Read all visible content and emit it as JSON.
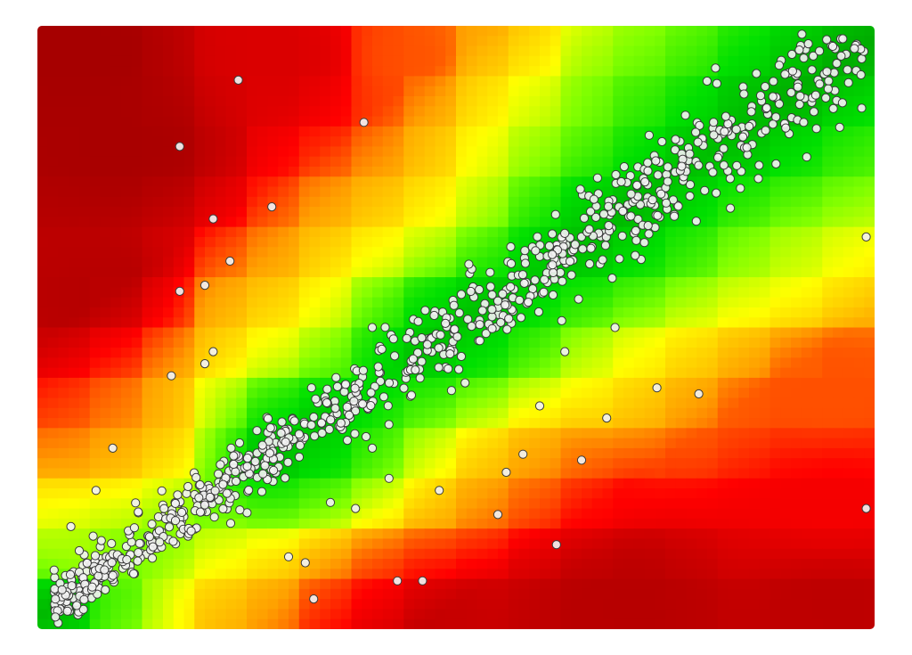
{
  "chart_data": {
    "type": "scatter",
    "title": "",
    "xlabel": "",
    "ylabel": "",
    "xlim": [
      0,
      1
    ],
    "ylim": [
      0,
      1
    ],
    "grid": false,
    "legend": "none",
    "heatmap_background": {
      "description_colorscale": [
        "#00a000",
        "#00e000",
        "#80ff00",
        "#ffff00",
        "#ffa000",
        "#ff0000",
        "#a00000"
      ],
      "min_color": "#00a000",
      "max_color": "#a00000",
      "cells_x": 12,
      "cells_y": 12,
      "anchor_points": [
        {
          "x": 0.05,
          "y": 0.95,
          "v": 0.98
        },
        {
          "x": 0.1,
          "y": 0.8,
          "v": 0.97
        },
        {
          "x": 0.1,
          "y": 0.55,
          "v": 0.93
        },
        {
          "x": 0.12,
          "y": 0.3,
          "v": 0.88
        },
        {
          "x": 0.07,
          "y": 0.1,
          "v": 0.7
        },
        {
          "x": 0.04,
          "y": 0.04,
          "v": 0.05
        },
        {
          "x": 0.1,
          "y": 0.04,
          "v": 0.4
        },
        {
          "x": 0.2,
          "y": 0.05,
          "v": 0.8
        },
        {
          "x": 0.4,
          "y": 0.03,
          "v": 0.9
        },
        {
          "x": 0.7,
          "y": 0.04,
          "v": 0.92
        },
        {
          "x": 0.95,
          "y": 0.05,
          "v": 0.9
        },
        {
          "x": 0.95,
          "y": 0.2,
          "v": 0.7
        },
        {
          "x": 0.95,
          "y": 0.4,
          "v": 0.5
        },
        {
          "x": 0.95,
          "y": 0.6,
          "v": 0.25
        },
        {
          "x": 0.95,
          "y": 0.8,
          "v": 0.1
        },
        {
          "x": 0.9,
          "y": 0.95,
          "v": 0.05
        },
        {
          "x": 0.7,
          "y": 0.95,
          "v": 0.1
        },
        {
          "x": 0.55,
          "y": 0.95,
          "v": 0.3
        },
        {
          "x": 0.45,
          "y": 0.95,
          "v": 0.5
        },
        {
          "x": 0.3,
          "y": 0.95,
          "v": 0.8
        },
        {
          "x": 0.5,
          "y": 0.5,
          "v": 0.15
        },
        {
          "x": 0.3,
          "y": 0.3,
          "v": 0.15
        },
        {
          "x": 0.7,
          "y": 0.65,
          "v": 0.12
        },
        {
          "x": 0.25,
          "y": 0.55,
          "v": 0.6
        },
        {
          "x": 0.6,
          "y": 0.25,
          "v": 0.65
        },
        {
          "x": 0.4,
          "y": 0.7,
          "v": 0.55
        },
        {
          "x": 0.75,
          "y": 0.4,
          "v": 0.45
        }
      ]
    },
    "trend": {
      "slope": 0.96,
      "intercept": 0.02,
      "spread": 0.035
    },
    "outliers": [
      {
        "x": 0.24,
        "y": 0.91
      },
      {
        "x": 0.17,
        "y": 0.8
      },
      {
        "x": 0.39,
        "y": 0.84
      },
      {
        "x": 0.21,
        "y": 0.68
      },
      {
        "x": 0.23,
        "y": 0.61
      },
      {
        "x": 0.28,
        "y": 0.7
      },
      {
        "x": 0.2,
        "y": 0.57
      },
      {
        "x": 0.17,
        "y": 0.56
      },
      {
        "x": 0.21,
        "y": 0.46
      },
      {
        "x": 0.09,
        "y": 0.3
      },
      {
        "x": 0.07,
        "y": 0.23
      },
      {
        "x": 0.04,
        "y": 0.17
      },
      {
        "x": 0.05,
        "y": 0.13
      },
      {
        "x": 0.32,
        "y": 0.11
      },
      {
        "x": 0.33,
        "y": 0.05
      },
      {
        "x": 0.43,
        "y": 0.08
      },
      {
        "x": 0.46,
        "y": 0.08
      },
      {
        "x": 0.38,
        "y": 0.2
      },
      {
        "x": 0.55,
        "y": 0.19
      },
      {
        "x": 0.62,
        "y": 0.14
      },
      {
        "x": 0.56,
        "y": 0.26
      },
      {
        "x": 0.58,
        "y": 0.29
      },
      {
        "x": 0.65,
        "y": 0.28
      },
      {
        "x": 0.68,
        "y": 0.35
      },
      {
        "x": 0.74,
        "y": 0.4
      },
      {
        "x": 0.69,
        "y": 0.5
      },
      {
        "x": 0.99,
        "y": 0.2
      },
      {
        "x": 0.91,
        "y": 0.96
      },
      {
        "x": 0.96,
        "y": 0.95
      },
      {
        "x": 0.81,
        "y": 0.93
      },
      {
        "x": 0.4,
        "y": 0.3
      },
      {
        "x": 0.42,
        "y": 0.25
      },
      {
        "x": 0.35,
        "y": 0.21
      },
      {
        "x": 0.48,
        "y": 0.23
      },
      {
        "x": 0.4,
        "y": 0.5
      },
      {
        "x": 0.16,
        "y": 0.42
      },
      {
        "x": 0.2,
        "y": 0.44
      },
      {
        "x": 0.6,
        "y": 0.37
      },
      {
        "x": 0.63,
        "y": 0.46
      },
      {
        "x": 0.99,
        "y": 0.65
      },
      {
        "x": 0.79,
        "y": 0.39
      },
      {
        "x": 0.3,
        "y": 0.12
      }
    ],
    "cluster": {
      "count": 900,
      "x_range": [
        0.02,
        0.99
      ],
      "density_peak_x": 0.32
    }
  }
}
